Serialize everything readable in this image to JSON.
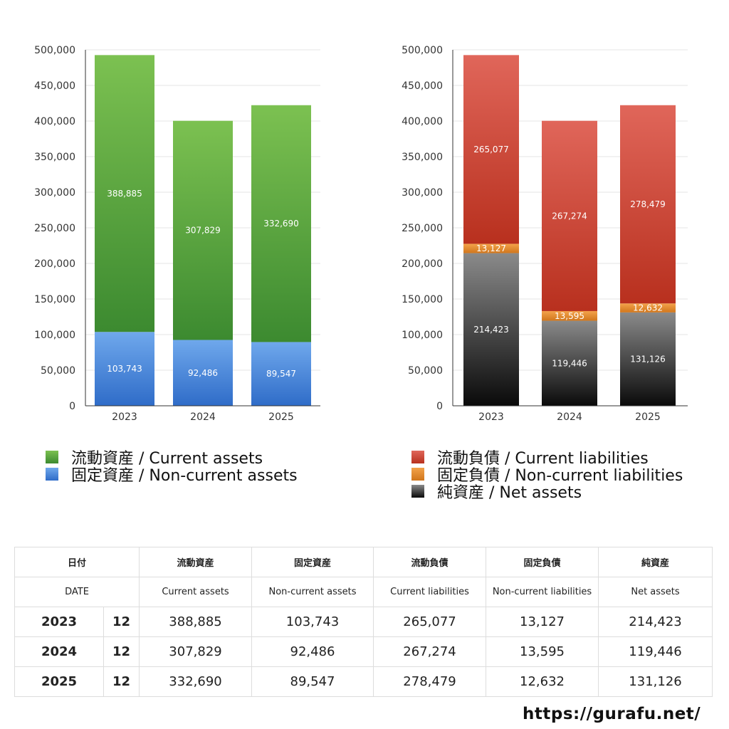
{
  "chart_data": [
    {
      "type": "bar",
      "stacked": true,
      "categories": [
        "2023",
        "2024",
        "2025"
      ],
      "series": [
        {
          "name": "固定資産 / Non-current assets",
          "values": [
            103743,
            92486,
            89547
          ],
          "color_top": "#6fa8ec",
          "color_bottom": "#2f6cc8"
        },
        {
          "name": "流動資産 / Current assets",
          "values": [
            388885,
            307829,
            332690
          ],
          "color_top": "#7cc151",
          "color_bottom": "#3c8a30"
        }
      ],
      "ylim": [
        0,
        500000
      ],
      "yticks": [
        "0",
        "50,000",
        "100,000",
        "150,000",
        "200,000",
        "250,000",
        "300,000",
        "350,000",
        "400,000",
        "450,000",
        "500,000"
      ],
      "grid": true
    },
    {
      "type": "bar",
      "stacked": true,
      "categories": [
        "2023",
        "2024",
        "2025"
      ],
      "series": [
        {
          "name": "純資産 / Net assets",
          "values": [
            214423,
            119446,
            131126
          ],
          "color_top": "#8a8a8a",
          "color_bottom": "#0a0a0a"
        },
        {
          "name": "固定負債 / Non-current liabilities",
          "values": [
            13127,
            13595,
            12632
          ],
          "color_top": "#f3a24a",
          "color_bottom": "#d0761c"
        },
        {
          "name": "流動負債 / Current liabilities",
          "values": [
            265077,
            267274,
            278479
          ],
          "color_top": "#e0665a",
          "color_bottom": "#b8301e"
        }
      ],
      "ylim": [
        0,
        500000
      ],
      "yticks": [
        "0",
        "50,000",
        "100,000",
        "150,000",
        "200,000",
        "250,000",
        "300,000",
        "350,000",
        "400,000",
        "450,000",
        "500,000"
      ],
      "grid": true
    }
  ],
  "legend_left": [
    "流動資産 / Current assets",
    "固定資産 / Non-current assets"
  ],
  "legend_right": [
    "流動負債 / Current liabilities",
    "固定負債 / Non-current liabilities",
    "純資産 / Net assets"
  ],
  "table": {
    "header_jp": [
      "日付",
      "流動資産",
      "固定資産",
      "流動負債",
      "固定負債",
      "純資産"
    ],
    "header_en": [
      "DATE",
      "Current assets",
      "Non-current assets",
      "Current liabilities",
      "Non-current liabilities",
      "Net assets"
    ],
    "rows": [
      {
        "year": "2023",
        "month": "12",
        "values": [
          "388,885",
          "103,743",
          "265,077",
          "13,127",
          "214,423"
        ]
      },
      {
        "year": "2024",
        "month": "12",
        "values": [
          "307,829",
          "92,486",
          "267,274",
          "13,595",
          "119,446"
        ]
      },
      {
        "year": "2025",
        "month": "12",
        "values": [
          "332,690",
          "89,547",
          "278,479",
          "12,632",
          "131,126"
        ]
      }
    ]
  },
  "site_url": "https://gurafu.net/"
}
